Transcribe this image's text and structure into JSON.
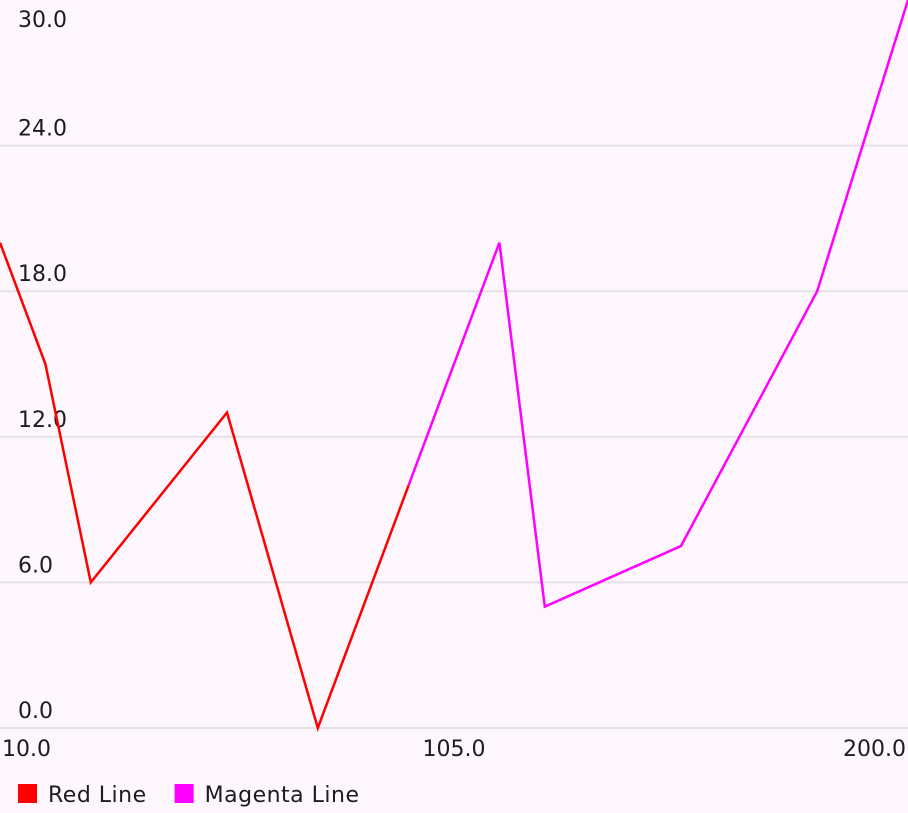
{
  "chart_data": {
    "type": "line",
    "x_axis": {
      "min": 10,
      "max": 200,
      "ticks": [
        10,
        105,
        200
      ],
      "tick_labels": [
        "10.0",
        "105.0",
        "200.0"
      ]
    },
    "y_axis": {
      "min": 0,
      "max": 30,
      "ticks": [
        0,
        6,
        12,
        18,
        24,
        30
      ],
      "tick_labels": [
        "0.0",
        "6.0",
        "12.0",
        "18.0",
        "24.0",
        "30.0"
      ]
    },
    "grid": "horizontal",
    "legend_position": "bottom-left",
    "series": [
      {
        "name": "Red Line",
        "color": "#ff0000",
        "points": [
          {
            "x": 10,
            "y": 20
          },
          {
            "x": 19.5,
            "y": 15
          },
          {
            "x": 29,
            "y": 6
          },
          {
            "x": 57.5,
            "y": 13
          },
          {
            "x": 76.5,
            "y": 0
          },
          {
            "x": 95.5,
            "y": 10
          }
        ]
      },
      {
        "name": "Magenta Line",
        "color": "#ff00ff",
        "points": [
          {
            "x": 95.5,
            "y": 10
          },
          {
            "x": 114.5,
            "y": 20
          },
          {
            "x": 124,
            "y": 5
          },
          {
            "x": 152.5,
            "y": 7.5
          },
          {
            "x": 181,
            "y": 18
          },
          {
            "x": 200,
            "y": 30
          }
        ]
      }
    ]
  }
}
